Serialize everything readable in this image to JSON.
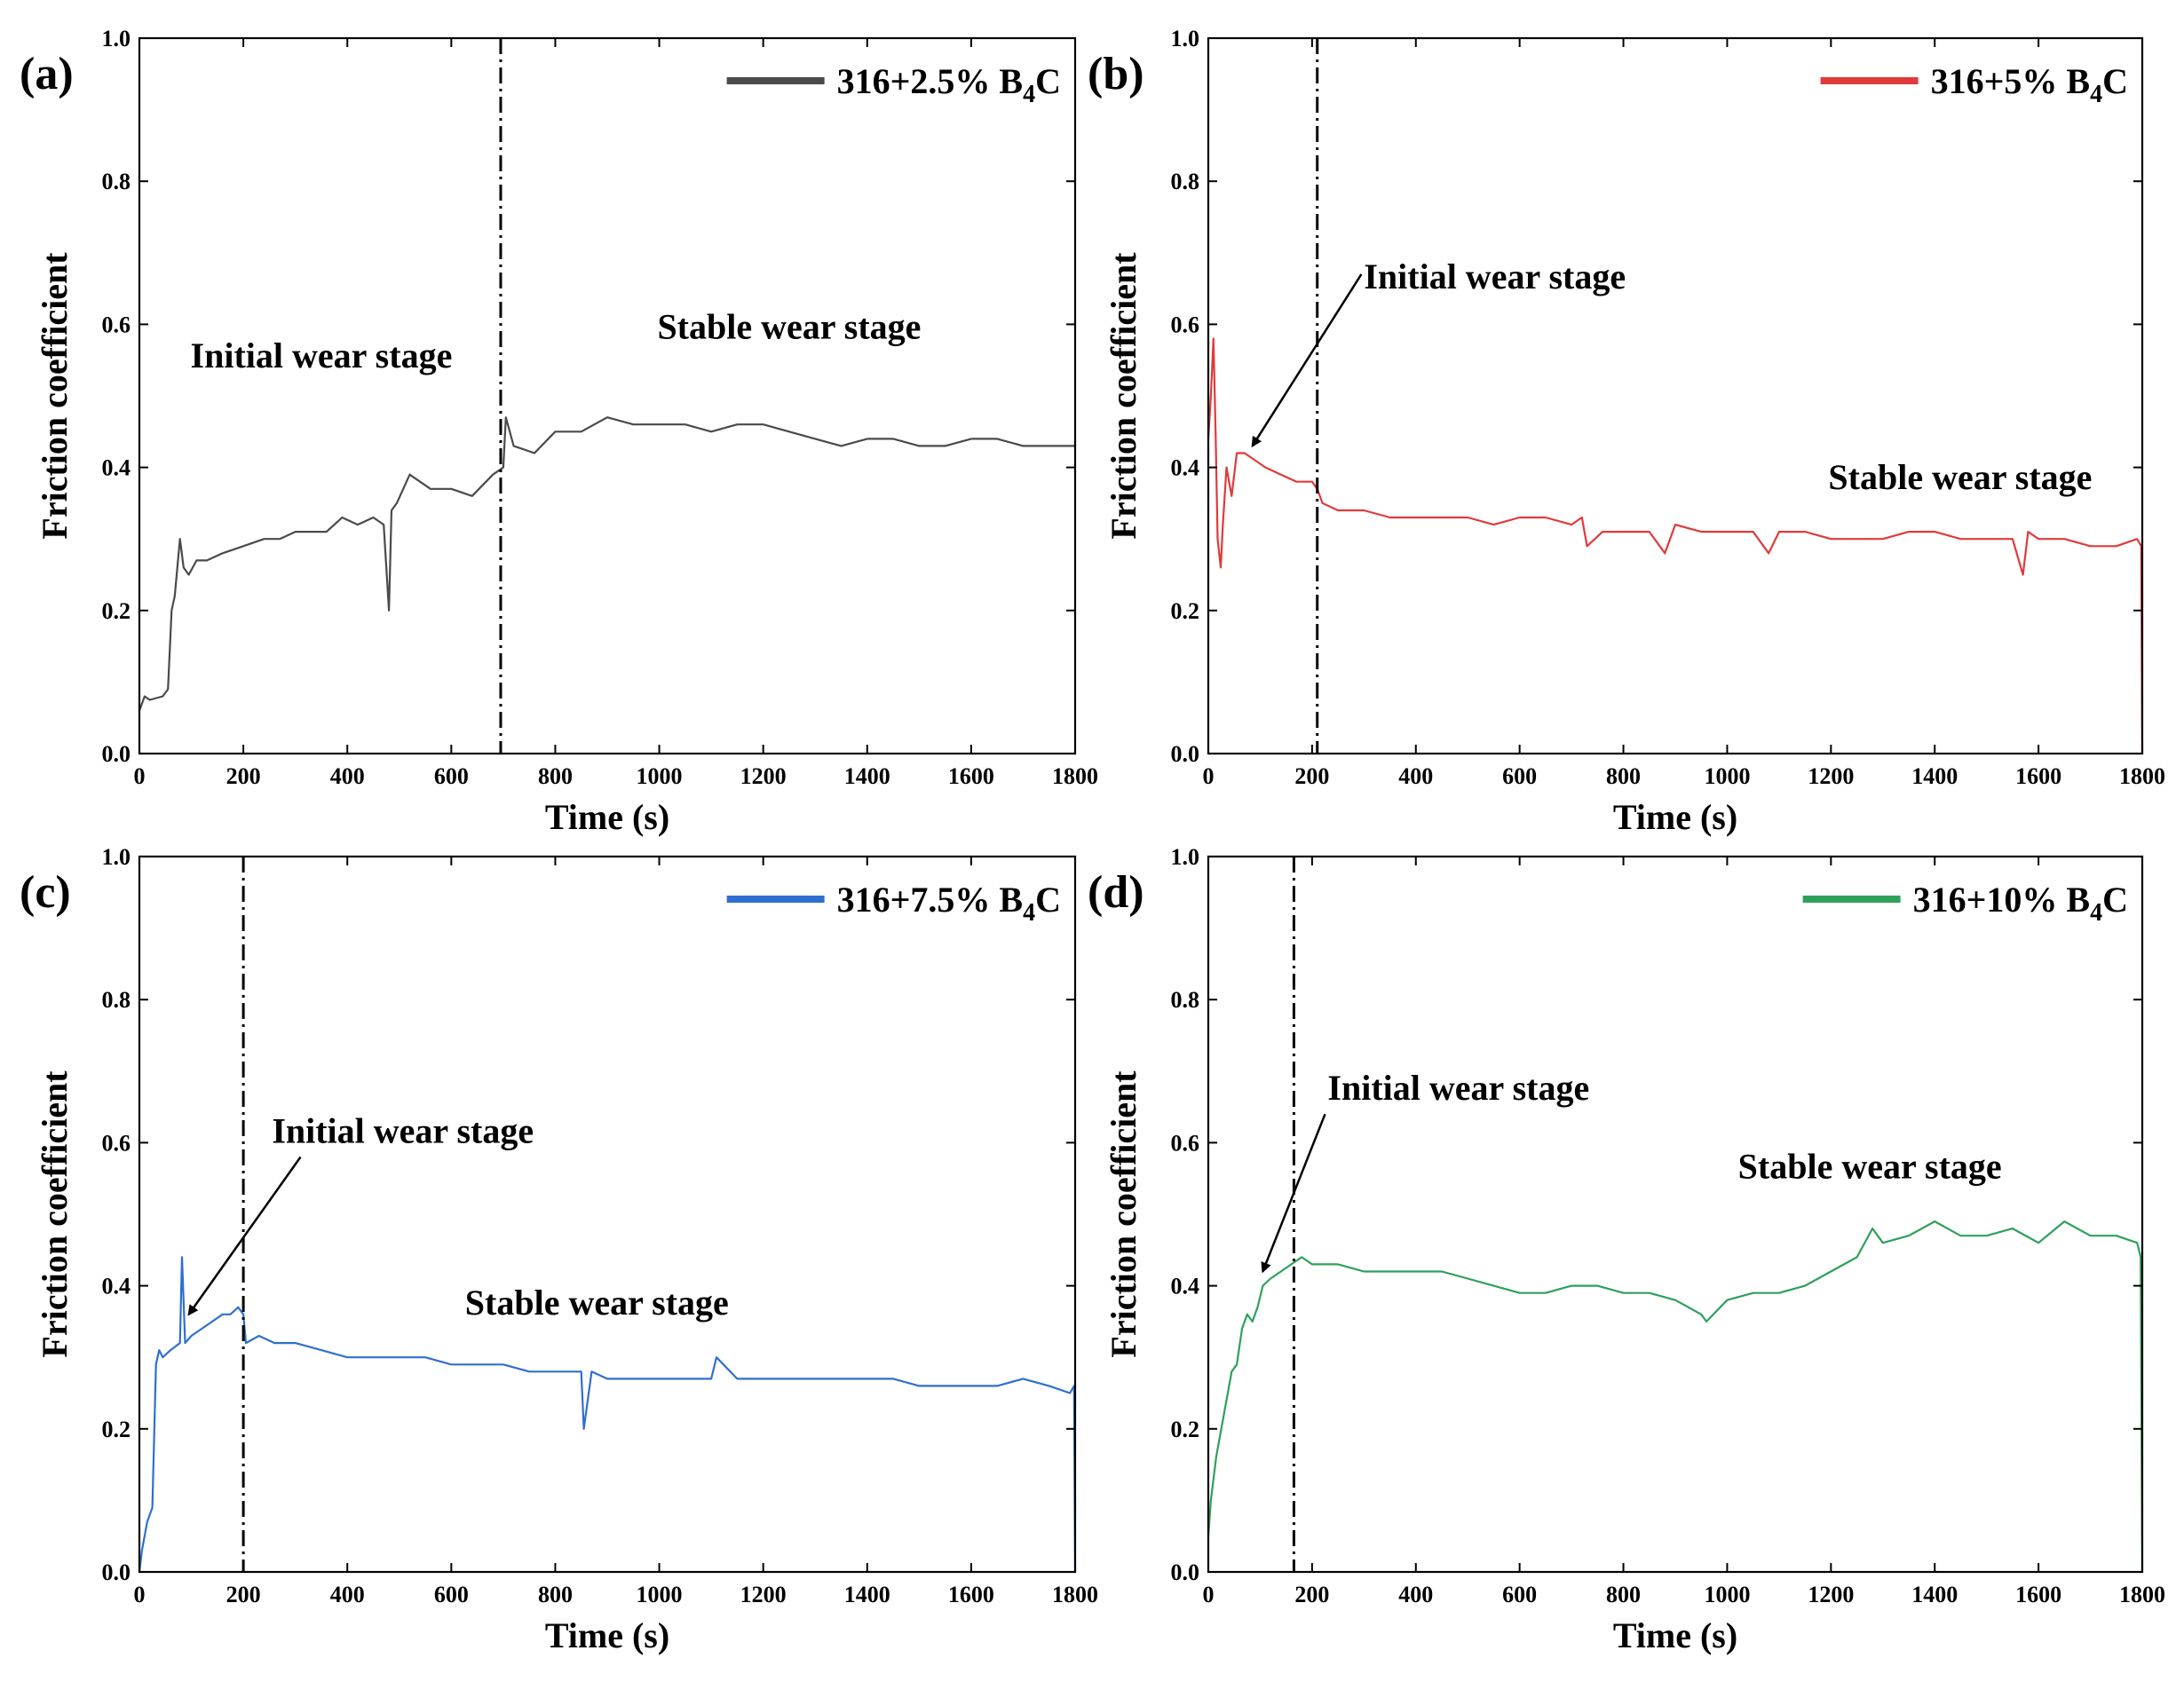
{
  "chart_data": [
    {
      "type": "line",
      "panel_label": "(a)",
      "series": [
        {
          "name": "316+2.5% B",
          "sub": "4",
          "tail": "C",
          "color": "#4a4a4a",
          "x": [
            0,
            10,
            20,
            45,
            55,
            62,
            68,
            78,
            85,
            95,
            110,
            130,
            160,
            200,
            240,
            270,
            300,
            330,
            360,
            390,
            420,
            450,
            470,
            480,
            485,
            495,
            520,
            560,
            600,
            640,
            680,
            700,
            705,
            720,
            760,
            800,
            850,
            900,
            950,
            1000,
            1050,
            1100,
            1150,
            1200,
            1250,
            1300,
            1350,
            1400,
            1450,
            1500,
            1550,
            1600,
            1650,
            1700,
            1750,
            1800
          ],
          "y": [
            0.06,
            0.08,
            0.075,
            0.08,
            0.09,
            0.2,
            0.22,
            0.3,
            0.26,
            0.25,
            0.27,
            0.27,
            0.28,
            0.29,
            0.3,
            0.3,
            0.31,
            0.31,
            0.31,
            0.33,
            0.32,
            0.33,
            0.32,
            0.2,
            0.34,
            0.35,
            0.39,
            0.37,
            0.37,
            0.36,
            0.39,
            0.4,
            0.47,
            0.43,
            0.42,
            0.45,
            0.45,
            0.47,
            0.46,
            0.46,
            0.46,
            0.45,
            0.46,
            0.46,
            0.45,
            0.44,
            0.43,
            0.44,
            0.44,
            0.43,
            0.43,
            0.44,
            0.44,
            0.43,
            0.43,
            0.43
          ]
        }
      ],
      "stage_boundary_x": 695,
      "annotations": [
        {
          "text": "Initial wear stage",
          "x": 350,
          "y": 0.54,
          "anchor": "middle"
        },
        {
          "text": "Stable wear stage",
          "x": 1250,
          "y": 0.58,
          "anchor": "middle"
        }
      ],
      "xlabel": "Time (s)",
      "ylabel": "Friction coefficient",
      "xlim": [
        0,
        1800
      ],
      "ylim": [
        0,
        1.0
      ],
      "xticks": [
        0,
        200,
        400,
        600,
        800,
        1000,
        1200,
        1400,
        1600,
        1800
      ],
      "yticks": [
        "0.0",
        "0.2",
        "0.4",
        "0.6",
        "0.8",
        "1.0"
      ],
      "legend_position": "top-right"
    },
    {
      "type": "line",
      "panel_label": "(b)",
      "series": [
        {
          "name": "316+5% B",
          "sub": "4",
          "tail": "C",
          "color": "#e03a3a",
          "x": [
            0,
            5,
            10,
            14,
            18,
            24,
            28,
            35,
            45,
            55,
            70,
            90,
            110,
            140,
            170,
            200,
            210,
            220,
            250,
            300,
            350,
            400,
            450,
            500,
            550,
            600,
            650,
            700,
            720,
            730,
            760,
            800,
            850,
            880,
            900,
            950,
            1000,
            1050,
            1080,
            1100,
            1150,
            1200,
            1250,
            1300,
            1350,
            1400,
            1450,
            1500,
            1550,
            1570,
            1580,
            1600,
            1650,
            1700,
            1750,
            1790,
            1798,
            1800
          ],
          "y": [
            0.44,
            0.5,
            0.58,
            0.45,
            0.3,
            0.26,
            0.32,
            0.4,
            0.36,
            0.42,
            0.42,
            0.41,
            0.4,
            0.39,
            0.38,
            0.38,
            0.37,
            0.35,
            0.34,
            0.34,
            0.33,
            0.33,
            0.33,
            0.33,
            0.32,
            0.33,
            0.33,
            0.32,
            0.33,
            0.29,
            0.31,
            0.31,
            0.31,
            0.28,
            0.32,
            0.31,
            0.31,
            0.31,
            0.28,
            0.31,
            0.31,
            0.3,
            0.3,
            0.3,
            0.31,
            0.31,
            0.3,
            0.3,
            0.3,
            0.25,
            0.31,
            0.3,
            0.3,
            0.29,
            0.29,
            0.3,
            0.29,
            0.0
          ]
        }
      ],
      "stage_boundary_x": 210,
      "annotations": [
        {
          "text": "Initial wear stage",
          "x": 300,
          "y": 0.65,
          "anchor": "start"
        },
        {
          "text": "Stable wear stage",
          "x": 1195,
          "y": 0.37,
          "anchor": "start"
        }
      ],
      "arrow": {
        "from": [
          295,
          0.67
        ],
        "to": [
          85,
          0.43
        ]
      },
      "xlabel": "Time (s)",
      "ylabel": "Friction coefficient",
      "xlim": [
        0,
        1800
      ],
      "ylim": [
        0,
        1.0
      ],
      "xticks": [
        0,
        200,
        400,
        600,
        800,
        1000,
        1200,
        1400,
        1600,
        1800
      ],
      "yticks": [
        "0.0",
        "0.2",
        "0.4",
        "0.6",
        "0.8",
        "1.0"
      ],
      "legend_position": "top-right"
    },
    {
      "type": "line",
      "panel_label": "(c)",
      "series": [
        {
          "name": "316+7.5% B",
          "sub": "4",
          "tail": "C",
          "color": "#2f6fcf",
          "x": [
            0,
            5,
            15,
            25,
            32,
            38,
            45,
            60,
            78,
            82,
            88,
            100,
            120,
            140,
            160,
            175,
            190,
            200,
            205,
            230,
            260,
            300,
            350,
            400,
            450,
            500,
            550,
            600,
            650,
            700,
            750,
            800,
            850,
            855,
            870,
            900,
            950,
            1000,
            1050,
            1100,
            1110,
            1150,
            1200,
            1250,
            1300,
            1350,
            1400,
            1450,
            1500,
            1550,
            1600,
            1650,
            1700,
            1750,
            1790,
            1798,
            1800
          ],
          "y": [
            0.0,
            0.03,
            0.07,
            0.09,
            0.29,
            0.31,
            0.3,
            0.31,
            0.32,
            0.44,
            0.32,
            0.33,
            0.34,
            0.35,
            0.36,
            0.36,
            0.37,
            0.36,
            0.32,
            0.33,
            0.32,
            0.32,
            0.31,
            0.3,
            0.3,
            0.3,
            0.3,
            0.29,
            0.29,
            0.29,
            0.28,
            0.28,
            0.28,
            0.2,
            0.28,
            0.27,
            0.27,
            0.27,
            0.27,
            0.27,
            0.3,
            0.27,
            0.27,
            0.27,
            0.27,
            0.27,
            0.27,
            0.27,
            0.26,
            0.26,
            0.26,
            0.26,
            0.27,
            0.26,
            0.25,
            0.26,
            0.0
          ]
        }
      ],
      "stage_boundary_x": 200,
      "annotations": [
        {
          "text": "Initial wear stage",
          "x": 255,
          "y": 0.6,
          "anchor": "start"
        },
        {
          "text": "Stable wear stage",
          "x": 880,
          "y": 0.36,
          "anchor": "middle"
        }
      ],
      "arrow": {
        "from": [
          310,
          0.58
        ],
        "to": [
          95,
          0.36
        ]
      },
      "xlabel": "Time (s)",
      "ylabel": "Friction coefficient",
      "xlim": [
        0,
        1800
      ],
      "ylim": [
        0,
        1.0
      ],
      "xticks": [
        0,
        200,
        400,
        600,
        800,
        1000,
        1200,
        1400,
        1600,
        1800
      ],
      "yticks": [
        "0.0",
        "0.2",
        "0.4",
        "0.6",
        "0.8",
        "1.0"
      ],
      "legend_position": "top-right"
    },
    {
      "type": "line",
      "panel_label": "(d)",
      "series": [
        {
          "name": "316+10% B",
          "sub": "4",
          "tail": "C",
          "color": "#2ea05a",
          "x": [
            0,
            5,
            15,
            25,
            35,
            45,
            55,
            65,
            75,
            85,
            95,
            105,
            120,
            140,
            160,
            180,
            200,
            250,
            300,
            350,
            400,
            450,
            500,
            550,
            600,
            650,
            700,
            750,
            800,
            850,
            900,
            950,
            960,
            1000,
            1050,
            1100,
            1150,
            1200,
            1250,
            1280,
            1300,
            1350,
            1400,
            1450,
            1500,
            1550,
            1600,
            1650,
            1700,
            1750,
            1790,
            1797,
            1800
          ],
          "y": [
            0.05,
            0.1,
            0.16,
            0.2,
            0.24,
            0.28,
            0.29,
            0.34,
            0.36,
            0.35,
            0.37,
            0.4,
            0.41,
            0.42,
            0.43,
            0.44,
            0.43,
            0.43,
            0.42,
            0.42,
            0.42,
            0.42,
            0.41,
            0.4,
            0.39,
            0.39,
            0.4,
            0.4,
            0.39,
            0.39,
            0.38,
            0.36,
            0.35,
            0.38,
            0.39,
            0.39,
            0.4,
            0.42,
            0.44,
            0.48,
            0.46,
            0.47,
            0.49,
            0.47,
            0.47,
            0.48,
            0.46,
            0.49,
            0.47,
            0.47,
            0.46,
            0.44,
            0.0
          ]
        }
      ],
      "stage_boundary_x": 165,
      "annotations": [
        {
          "text": "Initial wear stage",
          "x": 230,
          "y": 0.66,
          "anchor": "start"
        },
        {
          "text": "Stable wear stage",
          "x": 1275,
          "y": 0.55,
          "anchor": "middle"
        }
      ],
      "arrow": {
        "from": [
          225,
          0.64
        ],
        "to": [
          105,
          0.42
        ]
      },
      "xlabel": "Time (s)",
      "ylabel": "Friction coefficient",
      "xlim": [
        0,
        1800
      ],
      "ylim": [
        0,
        1.0
      ],
      "xticks": [
        0,
        200,
        400,
        600,
        800,
        1000,
        1200,
        1400,
        1600,
        1800
      ],
      "yticks": [
        "0.0",
        "0.2",
        "0.4",
        "0.6",
        "0.8",
        "1.0"
      ],
      "legend_position": "top-right"
    }
  ]
}
